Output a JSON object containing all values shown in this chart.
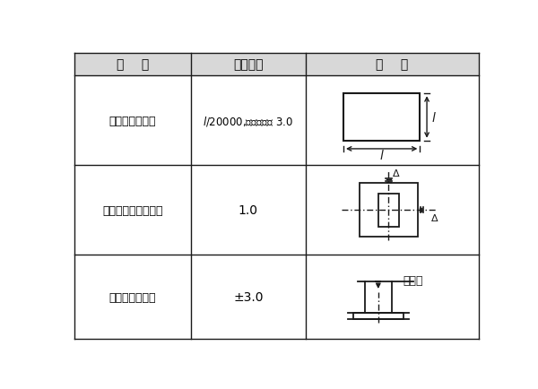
{
  "col_headers": [
    "项    目",
    "允许偏差",
    "图    例"
  ],
  "rows": [
    {
      "item": "建筑物定位轴线",
      "tolerance": "l/20000,且不应大于 3.0"
    },
    {
      "item": "基础上柱的定位轴线",
      "tolerance": "1.0"
    },
    {
      "item": "基础上柱底标高",
      "tolerance": "±3.0"
    }
  ],
  "bg_color": "#ffffff",
  "line_color": "#1a1a1a",
  "header_bg": "#d8d8d8",
  "text_color": "#000000",
  "font_size": 9,
  "header_font_size": 10
}
